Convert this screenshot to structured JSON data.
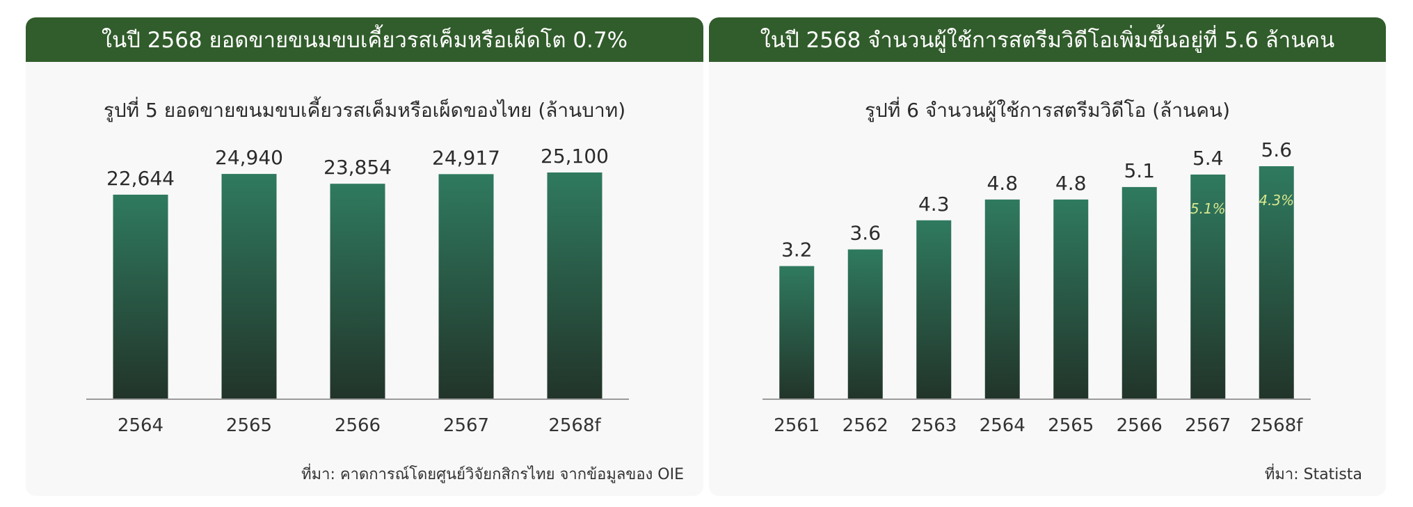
{
  "colors": {
    "banner_bg": "#315c2b",
    "bar_top": "#2f7a5f",
    "bar_bottom": "#22342a",
    "axis": "#9a9a9a",
    "growth_text": "#d9e88f"
  },
  "left": {
    "banner": "ในปี 2568 ยอดขายขนมขบเคี้ยวรสเค็มหรือเผ็ดโต 0.7%",
    "source": "ที่มา: คาดการณ์โดยศูนย์วิจัยกสิกรไทย จากข้อมูลของ OIE"
  },
  "right": {
    "banner": "ในปี 2568 จำนวนผู้ใช้การสตรีมวิดีโอเพิ่มขึ้นอยู่ที่ 5.6 ล้านคน",
    "source": "ที่มา: Statista"
  },
  "chart_data": [
    {
      "type": "bar",
      "title": "รูปที่ 5 ยอดขายขนมขบเคี้ยวรสเค็มหรือเผ็ดของไทย (ล้านบาท)",
      "categories": [
        "2564",
        "2565",
        "2566",
        "2567",
        "2568f"
      ],
      "values": [
        22644,
        24940,
        23854,
        24917,
        25100
      ],
      "value_labels": [
        "22,644",
        "24,940",
        "23,854",
        "24,917",
        "25,100"
      ],
      "ylim": [
        0,
        25100
      ],
      "grid": false,
      "legend": "none"
    },
    {
      "type": "bar",
      "title": "รูปที่ 6 จำนวนผู้ใช้การสตรีมวิดีโอ (ล้านคน)",
      "categories": [
        "2561",
        "2562",
        "2563",
        "2564",
        "2565",
        "2566",
        "2567",
        "2568f"
      ],
      "values": [
        3.2,
        3.6,
        4.3,
        4.8,
        4.8,
        5.1,
        5.4,
        5.6
      ],
      "value_labels": [
        "3.2",
        "3.6",
        "4.3",
        "4.8",
        "4.8",
        "5.1",
        "5.4",
        "5.6"
      ],
      "annotations": [
        {
          "category": "2567",
          "text": "5.1%"
        },
        {
          "category": "2568f",
          "text": "4.3%"
        }
      ],
      "ylim": [
        0,
        5.6
      ],
      "grid": false,
      "legend": "none"
    }
  ]
}
